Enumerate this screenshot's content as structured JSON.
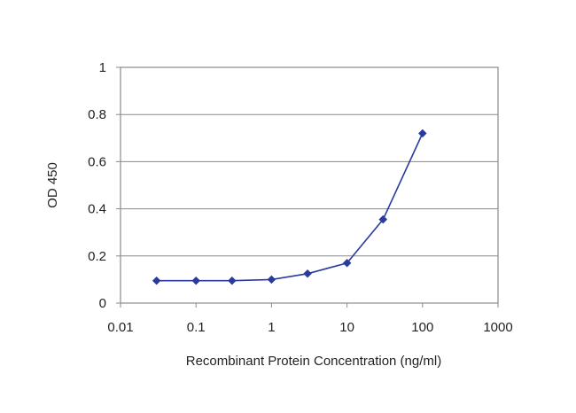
{
  "chart_data": {
    "type": "line",
    "title": "",
    "xlabel": "Recombinant Protein Concentration (ng/ml)",
    "ylabel": "OD 450",
    "x_scale": "log",
    "xlim": [
      0.01,
      1000
    ],
    "ylim": [
      0,
      1
    ],
    "x_ticks": [
      "0.01",
      "0.1",
      "1",
      "10",
      "100",
      "1000"
    ],
    "y_ticks": [
      "0",
      "0.2",
      "0.4",
      "0.6",
      "0.8",
      "1"
    ],
    "grid": "horizontal",
    "legend": "none",
    "series": [
      {
        "x": [
          0.03,
          0.1,
          0.3,
          1,
          3,
          10,
          30,
          100
        ],
        "y": [
          0.095,
          0.095,
          0.095,
          0.1,
          0.125,
          0.17,
          0.355,
          0.72
        ],
        "color": "#2a3b9e",
        "marker": "diamond"
      }
    ]
  }
}
